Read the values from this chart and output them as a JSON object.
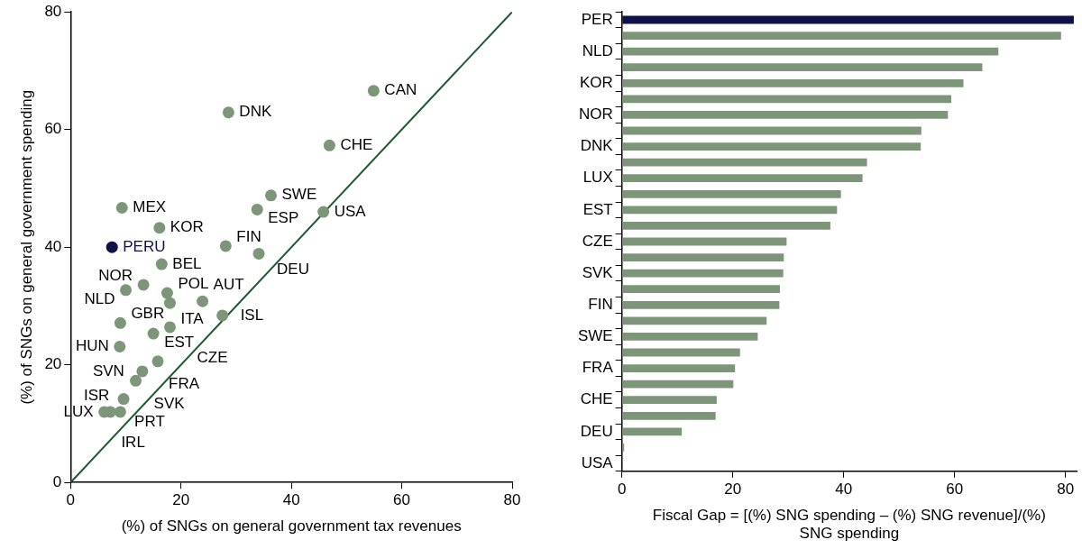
{
  "chart_data": [
    {
      "type": "scatter",
      "xlabel": "(%) of SNGs on general government tax revenues",
      "ylabel": "(%) of SNGs on general government spending",
      "xlim": [
        0,
        80
      ],
      "ylim": [
        0,
        80
      ],
      "xticks": [
        0,
        20,
        40,
        60,
        80
      ],
      "yticks": [
        0,
        20,
        40,
        60,
        80
      ],
      "grid": false,
      "legend": false,
      "marker": "circle",
      "series": [
        {
          "color": "#7d967a",
          "x": [
            54.9,
            28.6,
            46.9,
            36.3,
            33.8,
            45.8,
            9.3,
            16.1,
            28.1,
            34.1,
            16.5,
            13.2,
            10.0,
            17.5,
            18.0,
            23.9,
            27.5,
            9.0,
            18.0,
            15.0,
            8.9,
            15.8,
            13.0,
            11.8,
            9.6,
            6.1,
            7.2,
            9.0
          ],
          "values": [
            66.6,
            62.9,
            57.3,
            48.8,
            46.4,
            46.0,
            46.7,
            43.3,
            40.2,
            38.9,
            37.1,
            33.6,
            32.7,
            32.2,
            30.5,
            30.8,
            28.4,
            27.1,
            26.4,
            25.3,
            23.1,
            20.6,
            18.9,
            17.3,
            14.2,
            12.0,
            12.0,
            12.0
          ]
        },
        {
          "name": "PERU",
          "color": "#10104a",
          "x": [
            7.5
          ],
          "values": [
            40.0
          ]
        },
        {
          "type": "line",
          "color": "#1e5a30",
          "marker": "none",
          "x": [
            0,
            80
          ],
          "values": [
            0,
            80
          ]
        }
      ],
      "annotations": [
        {
          "text": "CAN",
          "x": 54.9,
          "y": 66.6
        },
        {
          "text": "DNK",
          "x": 28.6,
          "y": 62.9
        },
        {
          "text": "CHE",
          "x": 46.9,
          "y": 57.3
        },
        {
          "text": "SWE",
          "x": 36.3,
          "y": 48.8
        },
        {
          "text": "ESP",
          "x": 33.8,
          "y": 46.4
        },
        {
          "text": "USA",
          "x": 45.8,
          "y": 46.0
        },
        {
          "text": "MEX",
          "x": 9.3,
          "y": 46.7
        },
        {
          "text": "KOR",
          "x": 16.1,
          "y": 43.3
        },
        {
          "text": "FIN",
          "x": 28.1,
          "y": 40.2
        },
        {
          "text": "DEU",
          "x": 34.1,
          "y": 38.9
        },
        {
          "text": "BEL",
          "x": 16.5,
          "y": 37.1
        },
        {
          "text": "NOR",
          "x": 13.2,
          "y": 33.6
        },
        {
          "text": "NLD",
          "x": 10.0,
          "y": 32.7
        },
        {
          "text": "POL",
          "x": 17.5,
          "y": 32.2
        },
        {
          "text": "ITA",
          "x": 18.0,
          "y": 30.5
        },
        {
          "text": "AUT",
          "x": 23.9,
          "y": 30.8
        },
        {
          "text": "ISL",
          "x": 27.5,
          "y": 28.4
        },
        {
          "text": "GBR",
          "x": 9.0,
          "y": 27.1
        },
        {
          "text": "CZE",
          "x": 18.0,
          "y": 26.4
        },
        {
          "text": "EST",
          "x": 15.0,
          "y": 25.3
        },
        {
          "text": "HUN",
          "x": 8.9,
          "y": 23.1
        },
        {
          "text": "FRA",
          "x": 15.8,
          "y": 20.6
        },
        {
          "text": "SVN",
          "x": 13.0,
          "y": 18.9
        },
        {
          "text": "SVK",
          "x": 11.8,
          "y": 17.3
        },
        {
          "text": "PRT",
          "x": 9.6,
          "y": 14.2
        },
        {
          "text": "LUX",
          "x": 6.1,
          "y": 12.0
        },
        {
          "text": "IRL",
          "x": 7.2,
          "y": 12.0
        },
        {
          "text": "ISR",
          "x": 9.0,
          "y": 12.0
        }
      ]
    },
    {
      "type": "bar",
      "orientation": "horizontal",
      "xlabel": "Fiscal Gap = [(%) SNG spending – (%) SNG revenue]/(%) SNG spending",
      "xlim": [
        0,
        82
      ],
      "xticks": [
        0,
        20,
        40,
        60,
        80
      ],
      "grid": false,
      "legend": false,
      "categories": [
        "PER",
        null,
        "NLD",
        null,
        "KOR",
        null,
        "NOR",
        null,
        "DNK",
        null,
        "LUX",
        null,
        "EST",
        null,
        "CZE",
        null,
        "SVK",
        null,
        "FIN",
        null,
        "SWE",
        null,
        "FRA",
        null,
        "CHE",
        null,
        "DEU",
        null,
        "USA"
      ],
      "values": [
        81.5,
        79.2,
        67.9,
        65.0,
        61.6,
        59.4,
        58.8,
        54.0,
        53.9,
        44.2,
        43.4,
        39.5,
        38.8,
        37.6,
        29.7,
        29.2,
        29.1,
        28.5,
        28.4,
        26.1,
        24.5,
        21.3,
        20.4,
        20.1,
        17.1,
        16.9,
        10.8,
        0.4,
        0
      ],
      "colors": [
        "#10104a",
        "#7d967a",
        "#7d967a",
        "#7d967a",
        "#7d967a",
        "#7d967a",
        "#7d967a",
        "#7d967a",
        "#7d967a",
        "#7d967a",
        "#7d967a",
        "#7d967a",
        "#7d967a",
        "#7d967a",
        "#7d967a",
        "#7d967a",
        "#7d967a",
        "#7d967a",
        "#7d967a",
        "#7d967a",
        "#7d967a",
        "#7d967a",
        "#7d967a",
        "#7d967a",
        "#7d967a",
        "#7d967a",
        "#7d967a",
        "#7d967a",
        "#7d967a"
      ]
    }
  ]
}
